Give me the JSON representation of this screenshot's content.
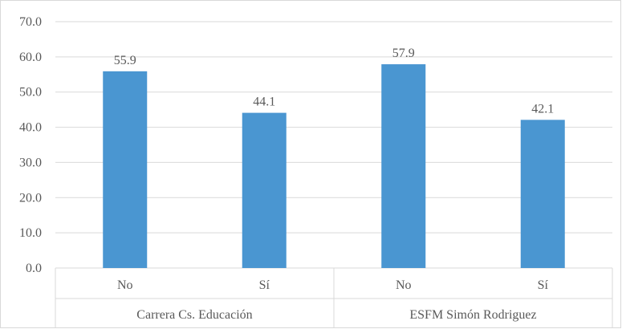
{
  "chart_data": {
    "type": "bar",
    "ylim": [
      0,
      70
    ],
    "y_tick_step": 10,
    "y_tick_labels": [
      "0.0",
      "10.0",
      "20.0",
      "30.0",
      "40.0",
      "50.0",
      "60.0",
      "70.0"
    ],
    "grid": true,
    "legend": "none",
    "bar_color": "#4a96d1",
    "groups": [
      {
        "label": "Carrera Cs. Educación",
        "categories": [
          "No",
          "Sí"
        ],
        "values": [
          55.9,
          44.1
        ],
        "value_labels": [
          "55.9",
          "44.1"
        ]
      },
      {
        "label": "ESFM Simón Rodriguez",
        "categories": [
          "No",
          "Sí"
        ],
        "values": [
          57.9,
          42.1
        ],
        "value_labels": [
          "57.9",
          "42.1"
        ]
      }
    ]
  }
}
